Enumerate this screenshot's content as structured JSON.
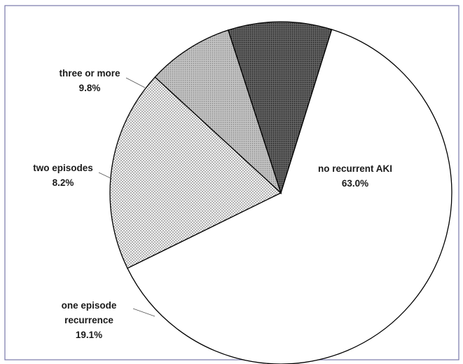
{
  "chart_data": {
    "type": "pie",
    "start_angle_deg_clockwise_from_north": 17.3,
    "direction": "clockwise",
    "slices": [
      {
        "label": "no recurrent AKI",
        "value": 63.0,
        "value_label": "63.0%",
        "fill": "#ffffff",
        "pattern": "none"
      },
      {
        "label": "one episode recurrence",
        "label_lines": [
          "one episode",
          "recurrence"
        ],
        "value": 19.1,
        "value_label": "19.1%",
        "fill": "#e8e8e8",
        "pattern": "dots"
      },
      {
        "label": "two episodes",
        "value": 8.2,
        "value_label": "8.2%",
        "fill": "#c4c4c4",
        "pattern": "fine-dots"
      },
      {
        "label": "three or more",
        "value": 9.8,
        "value_label": "9.8%",
        "fill": "#5e5e5e",
        "pattern": "dark-dots"
      }
    ],
    "colors": {
      "frame": "#7777aa",
      "stroke": "#000000",
      "text": "#1a1a1a"
    }
  }
}
